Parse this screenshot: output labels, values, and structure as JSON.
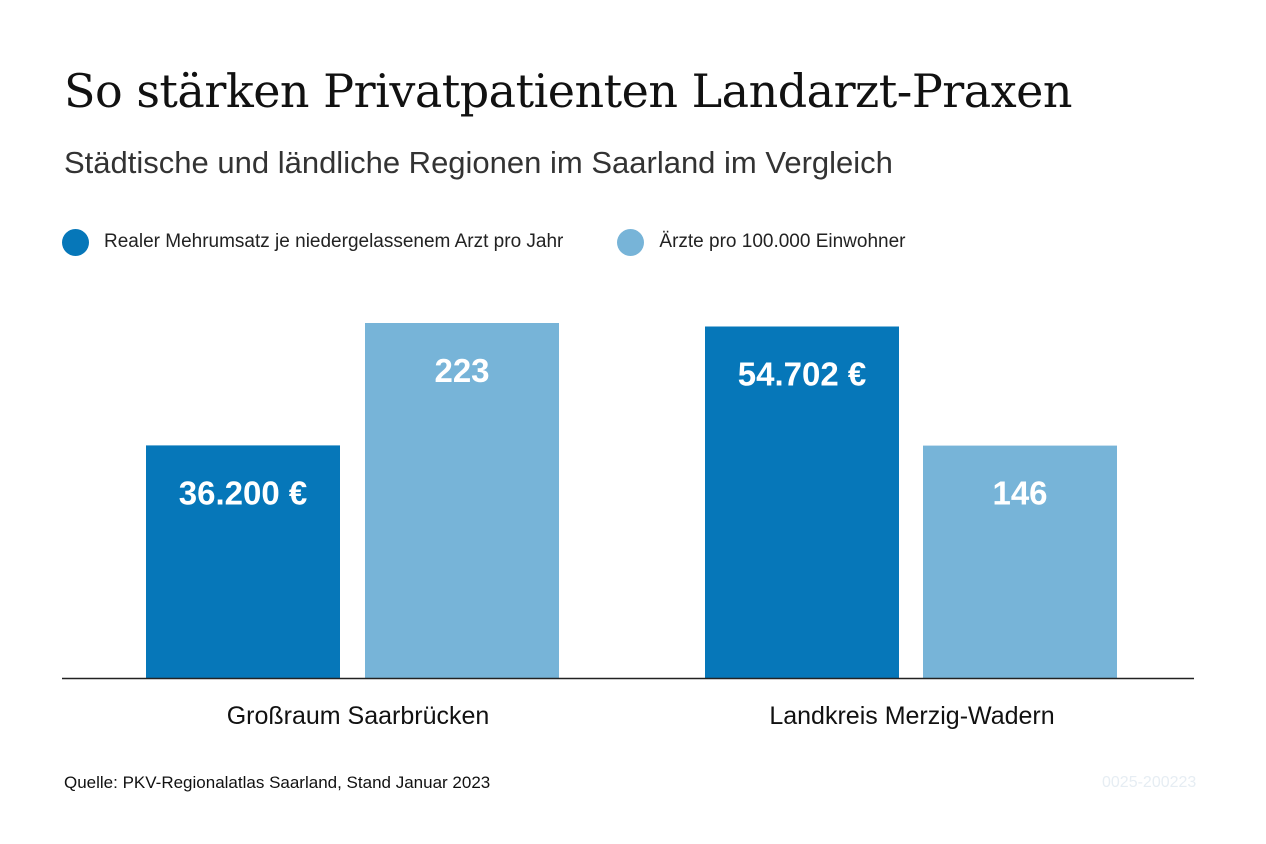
{
  "header": {
    "title": "So stärken Privatpatienten Landarzt-Praxen",
    "subtitle": "Städtische und ländliche Regionen im Saarland im Vergleich"
  },
  "colors": {
    "series_dark": "#0677b9",
    "series_light": "#77b4d8",
    "axis": "#222222",
    "bar_label": "#ffffff"
  },
  "chart_data": {
    "type": "bar",
    "title": "So stärken Privatpatienten Landarzt-Praxen",
    "subtitle": "Städtische und ländliche Regionen im Saarland im Vergleich",
    "categories": [
      "Großraum Saarbrücken",
      "Landkreis Merzig-Wadern"
    ],
    "series": [
      {
        "name": "Realer Mehrumsatz je niedergelassenem Arzt pro Jahr",
        "values": [
          36200,
          54702
        ],
        "labels": [
          "36.200 €",
          "54.702 €"
        ],
        "color": "#0677b9"
      },
      {
        "name": "Ärzte pro 100.000 Einwohner",
        "values": [
          223,
          146
        ],
        "labels": [
          "223",
          "146"
        ],
        "color": "#77b4d8"
      }
    ],
    "legend_position": "top-left",
    "grid": false,
    "note": "Each series uses its own scale; no value axis is shown."
  },
  "footer": {
    "source": "Quelle: PKV-Regionalatlas Saarland, Stand Januar 2023",
    "code": "0025-200223"
  }
}
